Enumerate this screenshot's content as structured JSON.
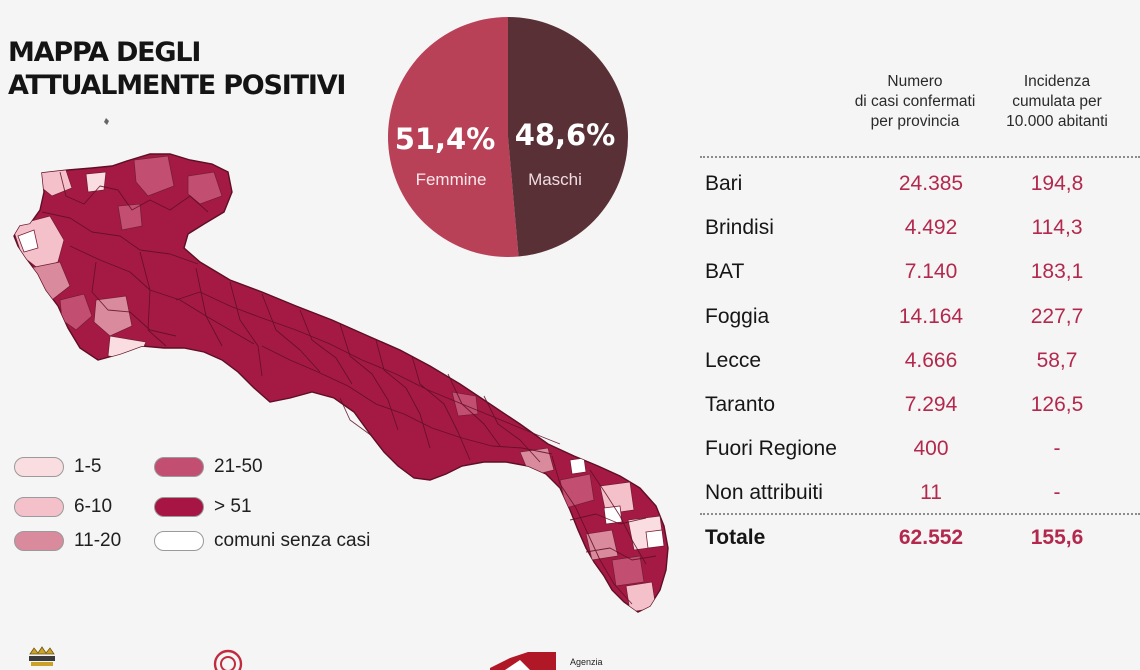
{
  "title": {
    "line1": "MAPPA DEGLI",
    "line2": "ATTUALMENTE POSITIVI"
  },
  "gender": {
    "female": {
      "percent": "51,4%",
      "label": "Femmine",
      "value": 51.4,
      "color": "#b84158"
    },
    "male": {
      "percent": "48,6%",
      "label": "Maschi",
      "value": 48.6,
      "color": "#5a3037"
    }
  },
  "legend": [
    {
      "label": "1-5",
      "color": "#f9dde0"
    },
    {
      "label": "6-10",
      "color": "#f4c1ca"
    },
    {
      "label": "11-20",
      "color": "#d98a9d"
    },
    {
      "label": "21-50",
      "color": "#c24e72"
    },
    {
      "label": "> 51",
      "color": "#a61543"
    },
    {
      "label": "comuni senza casi",
      "color": "#ffffff"
    }
  ],
  "table": {
    "headers": [
      "Numero\ndi casi confermati\nper provincia",
      "Incidenza\ncumulata per\n10.000 abitanti"
    ],
    "rows": [
      {
        "name": "Bari",
        "cases": "24.385",
        "incidence": "194,8"
      },
      {
        "name": "Brindisi",
        "cases": "4.492",
        "incidence": "114,3"
      },
      {
        "name": "BAT",
        "cases": "7.140",
        "incidence": "183,1"
      },
      {
        "name": "Foggia",
        "cases": "14.164",
        "incidence": "227,7"
      },
      {
        "name": "Lecce",
        "cases": "4.666",
        "incidence": "58,7"
      },
      {
        "name": "Taranto",
        "cases": "7.294",
        "incidence": "126,5"
      },
      {
        "name": "Fuori Regione",
        "cases": "400",
        "incidence": "-"
      },
      {
        "name": "Non attribuiti",
        "cases": "11",
        "incidence": "-"
      }
    ],
    "total": {
      "name": "Totale",
      "cases": "62.552",
      "incidence": "155,6"
    }
  },
  "footer": {
    "agency_text": "Agenzia"
  }
}
